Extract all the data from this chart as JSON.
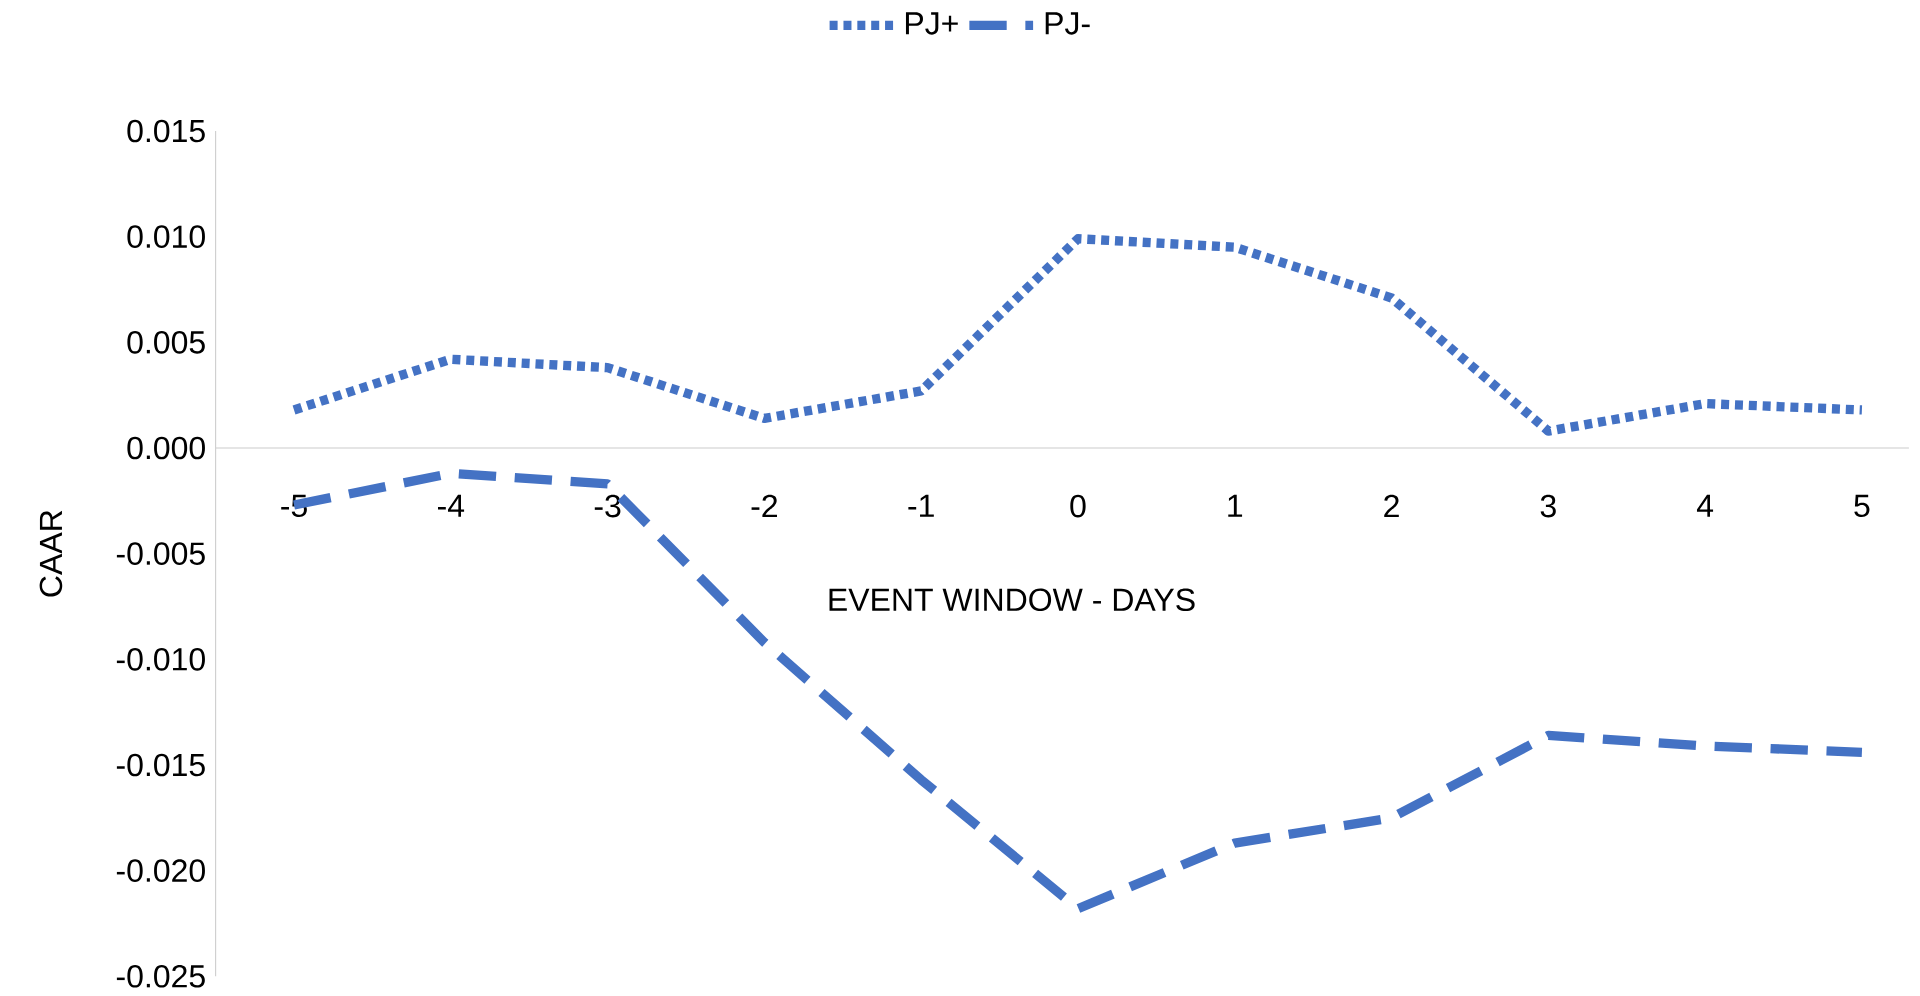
{
  "chart_data": {
    "type": "line",
    "xlabel": "EVENT WINDOW - DAYS",
    "ylabel": "CAAR",
    "categories": [
      "-5",
      "-4",
      "-3",
      "-2",
      "-1",
      "0",
      "1",
      "2",
      "3",
      "4",
      "5"
    ],
    "series": [
      {
        "name": "PJ+",
        "color": "#4472c4",
        "line_style": "dotted",
        "values": [
          0.0018,
          0.0042,
          0.0038,
          0.0014,
          0.0027,
          0.0099,
          0.0095,
          0.0071,
          0.0008,
          0.0021,
          0.0018
        ]
      },
      {
        "name": "PJ-",
        "color": "#4472c4",
        "line_style": "dashed",
        "values": [
          -0.0027,
          -0.0012,
          -0.0017,
          -0.0092,
          -0.0157,
          -0.0218,
          -0.0187,
          -0.0175,
          -0.0136,
          -0.0141,
          -0.0144
        ]
      }
    ],
    "ylim": [
      -0.025,
      0.015
    ],
    "yticks": [
      {
        "value": -0.025,
        "label": "-0.025"
      },
      {
        "value": -0.02,
        "label": "-0.020"
      },
      {
        "value": -0.015,
        "label": "-0.015"
      },
      {
        "value": -0.01,
        "label": "-0.010"
      },
      {
        "value": -0.005,
        "label": "-0.005"
      },
      {
        "value": 0,
        "label": "0.000"
      },
      {
        "value": 0.005,
        "label": "0.005"
      },
      {
        "value": 0.01,
        "label": "0.010"
      },
      {
        "value": 0.015,
        "label": "0.015"
      }
    ],
    "legend": "top"
  }
}
